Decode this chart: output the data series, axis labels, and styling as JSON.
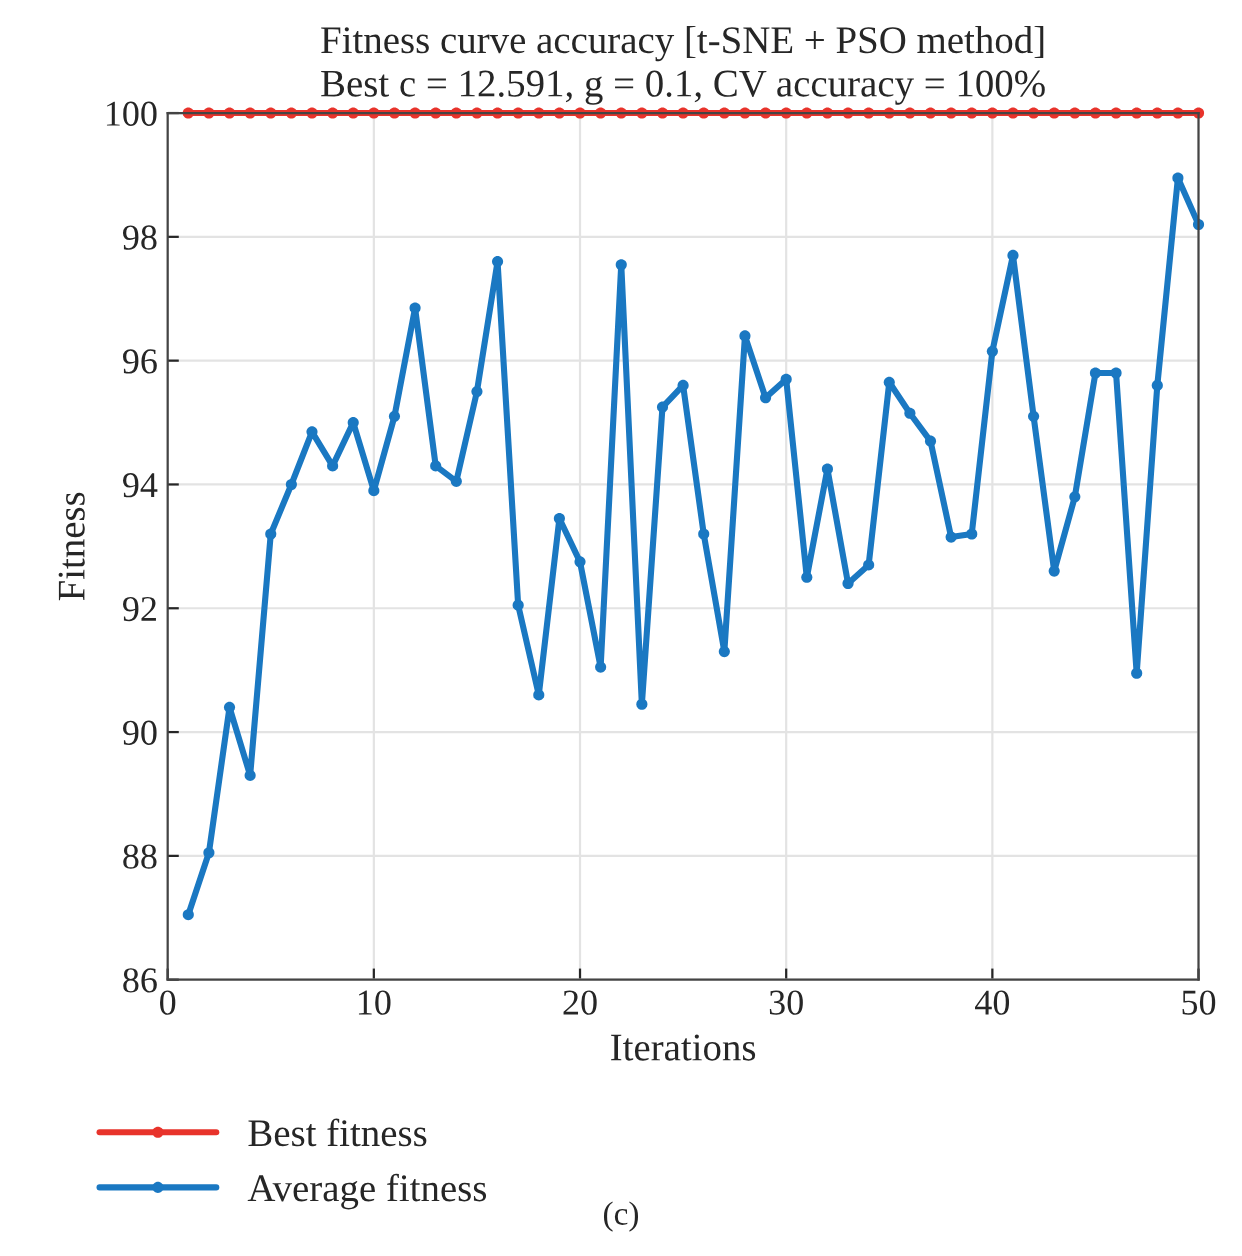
{
  "chart_data": {
    "type": "line",
    "title": "Fitness curve accuracy [t-SNE + PSO method]",
    "subtitle": "Best c = 12.591, g = 0.1, CV accuracy = 100%",
    "xlabel": "Iterations",
    "ylabel": "Fitness",
    "x": [
      1,
      2,
      3,
      4,
      5,
      6,
      7,
      8,
      9,
      10,
      11,
      12,
      13,
      14,
      15,
      16,
      17,
      18,
      19,
      20,
      21,
      22,
      23,
      24,
      25,
      26,
      27,
      28,
      29,
      30,
      31,
      32,
      33,
      34,
      35,
      36,
      37,
      38,
      39,
      40,
      41,
      42,
      43,
      44,
      45,
      46,
      47,
      48,
      49,
      50
    ],
    "series": [
      {
        "name": "Best fitness",
        "color": "#e8332b",
        "values": [
          100,
          100,
          100,
          100,
          100,
          100,
          100,
          100,
          100,
          100,
          100,
          100,
          100,
          100,
          100,
          100,
          100,
          100,
          100,
          100,
          100,
          100,
          100,
          100,
          100,
          100,
          100,
          100,
          100,
          100,
          100,
          100,
          100,
          100,
          100,
          100,
          100,
          100,
          100,
          100,
          100,
          100,
          100,
          100,
          100,
          100,
          100,
          100,
          100,
          100
        ]
      },
      {
        "name": "Average fitness",
        "color": "#1a78c2",
        "values": [
          87.05,
          88.05,
          90.4,
          89.3,
          93.2,
          94.0,
          94.85,
          94.3,
          95.0,
          93.9,
          95.1,
          96.85,
          94.3,
          94.05,
          95.5,
          97.6,
          92.05,
          90.6,
          93.45,
          92.75,
          91.05,
          97.55,
          90.45,
          95.25,
          95.6,
          93.2,
          91.3,
          96.4,
          95.4,
          95.7,
          92.5,
          94.25,
          92.4,
          92.7,
          95.65,
          95.15,
          94.7,
          93.15,
          93.2,
          96.15,
          97.7,
          95.1,
          92.6,
          93.8,
          95.8,
          95.8,
          90.95,
          95.6,
          98.95,
          98.2
        ]
      }
    ],
    "xlim": [
      0,
      50
    ],
    "xticks": [
      0,
      10,
      20,
      30,
      40,
      50
    ],
    "ylim": [
      86,
      100
    ],
    "yticks": [
      86,
      88,
      90,
      92,
      94,
      96,
      98,
      100
    ],
    "grid": true,
    "legend": "bottom left",
    "marker": "circle",
    "line_style": "solid",
    "annotations": [
      "(c)"
    ]
  }
}
